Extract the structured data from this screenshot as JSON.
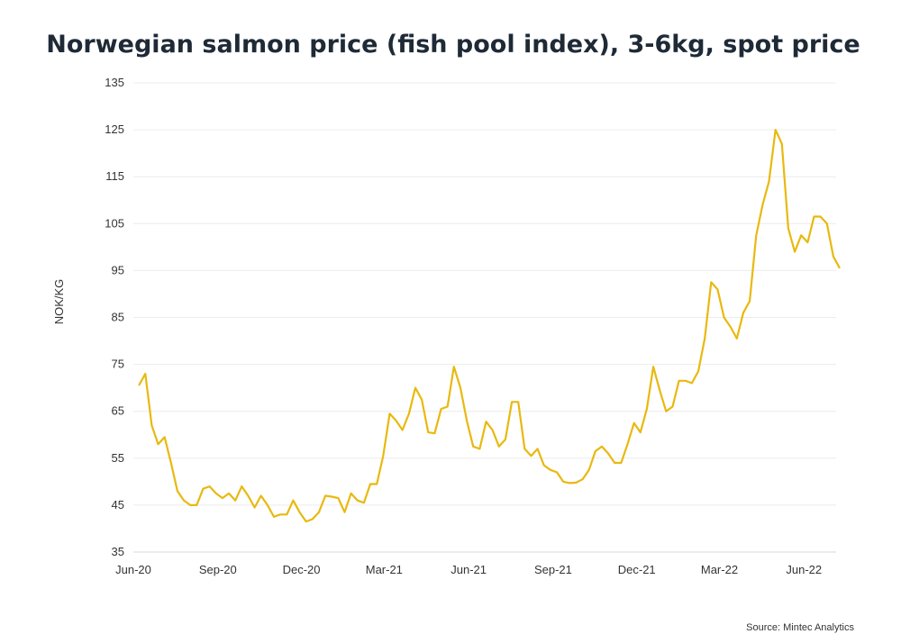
{
  "chart_data": {
    "type": "line",
    "title": "Norwegian salmon price (fish pool index), 3-6kg, spot price",
    "xlabel": "",
    "ylabel": "NOK/KG",
    "source": "Source: Mintec Analytics",
    "ylim": [
      35,
      135
    ],
    "yticks": [
      35,
      45,
      55,
      65,
      75,
      85,
      95,
      105,
      115,
      125,
      135
    ],
    "xlim": [
      "2020-06-01",
      "2022-07-08"
    ],
    "xticks": [
      {
        "date": "2020-06-01",
        "label": "Jun-20"
      },
      {
        "date": "2020-09-01",
        "label": "Sep-20"
      },
      {
        "date": "2020-12-01",
        "label": "Dec-20"
      },
      {
        "date": "2021-03-01",
        "label": "Mar-21"
      },
      {
        "date": "2021-06-01",
        "label": "Jun-21"
      },
      {
        "date": "2021-09-01",
        "label": "Sep-21"
      },
      {
        "date": "2021-12-01",
        "label": "Dec-21"
      },
      {
        "date": "2022-03-01",
        "label": "Mar-22"
      },
      {
        "date": "2022-06-01",
        "label": "Jun-22"
      }
    ],
    "grid": true,
    "line_color": "#e8b90f",
    "x": [
      "2020-06-07",
      "2020-06-14",
      "2020-06-21",
      "2020-06-28",
      "2020-07-05",
      "2020-07-12",
      "2020-07-19",
      "2020-07-26",
      "2020-08-02",
      "2020-08-09",
      "2020-08-16",
      "2020-08-23",
      "2020-08-30",
      "2020-09-06",
      "2020-09-13",
      "2020-09-20",
      "2020-09-27",
      "2020-10-04",
      "2020-10-11",
      "2020-10-18",
      "2020-10-25",
      "2020-11-01",
      "2020-11-08",
      "2020-11-15",
      "2020-11-22",
      "2020-11-29",
      "2020-12-06",
      "2020-12-13",
      "2020-12-20",
      "2020-12-27",
      "2021-01-03",
      "2021-01-10",
      "2021-01-17",
      "2021-01-24",
      "2021-01-31",
      "2021-02-07",
      "2021-02-14",
      "2021-02-21",
      "2021-02-28",
      "2021-03-07",
      "2021-03-14",
      "2021-03-21",
      "2021-03-28",
      "2021-04-04",
      "2021-04-11",
      "2021-04-18",
      "2021-04-25",
      "2021-05-02",
      "2021-05-09",
      "2021-05-16",
      "2021-05-23",
      "2021-05-30",
      "2021-06-06",
      "2021-06-13",
      "2021-06-20",
      "2021-06-27",
      "2021-07-04",
      "2021-07-11",
      "2021-07-18",
      "2021-07-25",
      "2021-08-01",
      "2021-08-08",
      "2021-08-15",
      "2021-08-22",
      "2021-08-29",
      "2021-09-05",
      "2021-09-12",
      "2021-09-19",
      "2021-09-26",
      "2021-10-03",
      "2021-10-10",
      "2021-10-17",
      "2021-10-24",
      "2021-10-31",
      "2021-11-07",
      "2021-11-14",
      "2021-11-21",
      "2021-11-28",
      "2021-12-05",
      "2021-12-12",
      "2021-12-19",
      "2021-12-26",
      "2022-01-02",
      "2022-01-09",
      "2022-01-16",
      "2022-01-23",
      "2022-01-30",
      "2022-02-06",
      "2022-02-13",
      "2022-02-20",
      "2022-02-27",
      "2022-03-06",
      "2022-03-13",
      "2022-03-20",
      "2022-03-27",
      "2022-04-03",
      "2022-04-10",
      "2022-04-17",
      "2022-04-24",
      "2022-05-01",
      "2022-05-08",
      "2022-05-15",
      "2022-05-22",
      "2022-05-29",
      "2022-06-05",
      "2022-06-12",
      "2022-06-19",
      "2022-06-26",
      "2022-07-03",
      "2022-07-10"
    ],
    "values": [
      70.5,
      73,
      62,
      58,
      59.5,
      54,
      48,
      46,
      45,
      45,
      48.5,
      49,
      47.5,
      46.5,
      47.5,
      46,
      49,
      47,
      44.5,
      47,
      45,
      42.5,
      43,
      43,
      46,
      43.5,
      41.5,
      42,
      43.5,
      47,
      46.8,
      46.5,
      43.5,
      47.5,
      46,
      45.5,
      49.5,
      49.5,
      55.5,
      64.5,
      63,
      61,
      64.5,
      70,
      67.5,
      60.5,
      60.3,
      65.5,
      66,
      74.5,
      70,
      63,
      57.5,
      57,
      62.8,
      61,
      57.5,
      59,
      67,
      67,
      57,
      55.5,
      57,
      53.5,
      52.5,
      52,
      50,
      49.7,
      49.8,
      50.5,
      52.5,
      56.5,
      57.5,
      56,
      54,
      54,
      58,
      62.5,
      60.5,
      65.5,
      74.5,
      69.5,
      65,
      66,
      71.5,
      71.5,
      71,
      73.5,
      80.5,
      92.5,
      91,
      85,
      83,
      80.5,
      86,
      88.5,
      102.5,
      109,
      114,
      125,
      122,
      104,
      99,
      102.5,
      101,
      106.5,
      106.5,
      105,
      98,
      95.5
    ]
  }
}
